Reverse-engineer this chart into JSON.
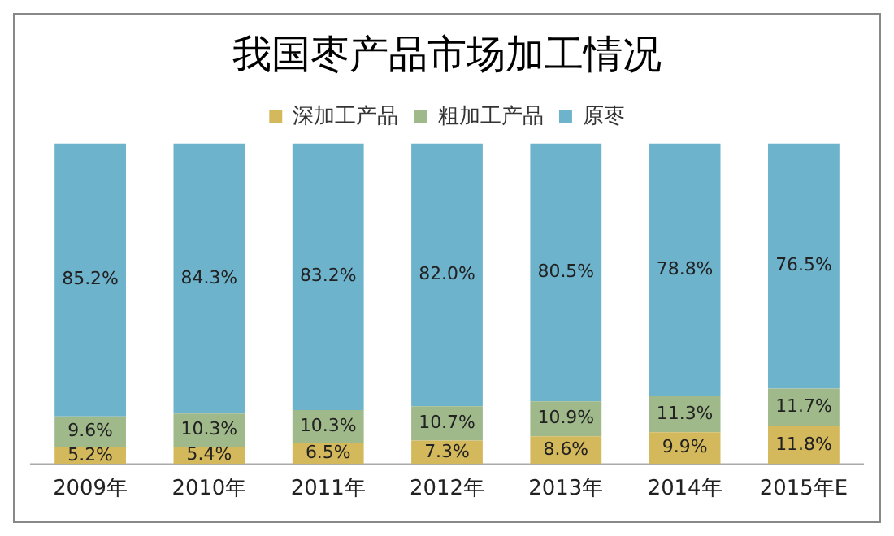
{
  "chart_data": {
    "type": "bar",
    "title": "我国枣产品市场加工情况",
    "stacked": true,
    "legend": "top",
    "grid": false,
    "tick_labels": "x",
    "ylim": [
      0,
      100
    ],
    "categories": [
      "2009年",
      "2010年",
      "2011年",
      "2012年",
      "2013年",
      "2014年",
      "2015年E"
    ],
    "series": [
      {
        "name": "深加工产品",
        "color": "#d4b85c",
        "values": [
          5.2,
          5.4,
          6.5,
          7.3,
          8.6,
          9.9,
          11.8
        ],
        "value_labels": [
          "5.2%",
          "5.4%",
          "6.5%",
          "7.3%",
          "8.6%",
          "9.9%",
          "11.8%"
        ]
      },
      {
        "name": "粗加工产品",
        "color": "#9fb98a",
        "values": [
          9.6,
          10.3,
          10.3,
          10.7,
          10.9,
          11.3,
          11.7
        ],
        "value_labels": [
          "9.6%",
          "10.3%",
          "10.3%",
          "10.7%",
          "10.9%",
          "11.3%",
          "11.7%"
        ]
      },
      {
        "name": "原枣",
        "color": "#6db3cc",
        "values": [
          85.2,
          84.3,
          83.2,
          82.0,
          80.5,
          78.8,
          76.5
        ],
        "value_labels": [
          "85.2%",
          "84.3%",
          "83.2%",
          "82.0%",
          "80.5%",
          "78.8%",
          "76.5%"
        ]
      }
    ]
  }
}
